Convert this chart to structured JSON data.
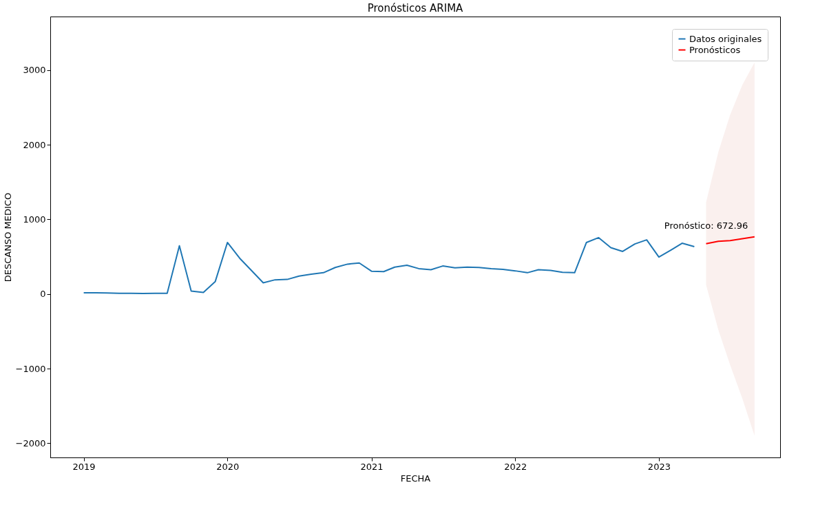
{
  "chart_data": {
    "type": "line",
    "title": "Pronósticos ARIMA",
    "xlabel": "FECHA",
    "ylabel": "DESCANSO MEDICO",
    "xlim": [
      "2018-10-08",
      "2023-11-05"
    ],
    "xticks": [
      "2019",
      "2020",
      "2021",
      "2022",
      "2023"
    ],
    "ylim": [
      -2190,
      3717
    ],
    "yticks": [
      -2000,
      -1000,
      0,
      1000,
      2000,
      3000
    ],
    "grid": false,
    "legend": "top right",
    "line_style": "solid",
    "marker": "none",
    "series": [
      {
        "name": "Datos originales",
        "color": "#1f77b4",
        "x": [
          "2019-01",
          "2019-02",
          "2019-03",
          "2019-04",
          "2019-05",
          "2019-06",
          "2019-07",
          "2019-08",
          "2019-09",
          "2019-10",
          "2019-11",
          "2019-12",
          "2020-01",
          "2020-02",
          "2020-03",
          "2020-04",
          "2020-05",
          "2020-06",
          "2020-07",
          "2020-08",
          "2020-09",
          "2020-10",
          "2020-11",
          "2020-12",
          "2021-01",
          "2021-02",
          "2021-03",
          "2021-04",
          "2021-05",
          "2021-06",
          "2021-07",
          "2021-08",
          "2021-09",
          "2021-10",
          "2021-11",
          "2021-12",
          "2022-01",
          "2022-02",
          "2022-03",
          "2022-04",
          "2022-05",
          "2022-06",
          "2022-07",
          "2022-08",
          "2022-09",
          "2022-10",
          "2022-11",
          "2022-12",
          "2023-01",
          "2023-02",
          "2023-03",
          "2023-04"
        ],
        "values": [
          15,
          15,
          14,
          10,
          8,
          6,
          8,
          8,
          645,
          40,
          20,
          165,
          690,
          480,
          320,
          150,
          190,
          195,
          240,
          265,
          285,
          355,
          400,
          415,
          305,
          300,
          360,
          385,
          340,
          325,
          375,
          350,
          360,
          355,
          340,
          330,
          310,
          285,
          325,
          315,
          290,
          285,
          690,
          755,
          620,
          570,
          670,
          725,
          495,
          590,
          680,
          635
        ]
      },
      {
        "name": "Pronósticos",
        "color": "#ff0000",
        "x": [
          "2023-05",
          "2023-06",
          "2023-07",
          "2023-08",
          "2023-09"
        ],
        "values": [
          672.96,
          705,
          715,
          740,
          765
        ],
        "lower": [
          120,
          -480,
          -950,
          -1400,
          -1900
        ],
        "upper": [
          1230,
          1900,
          2400,
          2800,
          3100
        ]
      }
    ],
    "annotations": [
      {
        "text": "Pronóstico: 672.96",
        "x": "2023-05",
        "y": 672.96
      }
    ]
  }
}
